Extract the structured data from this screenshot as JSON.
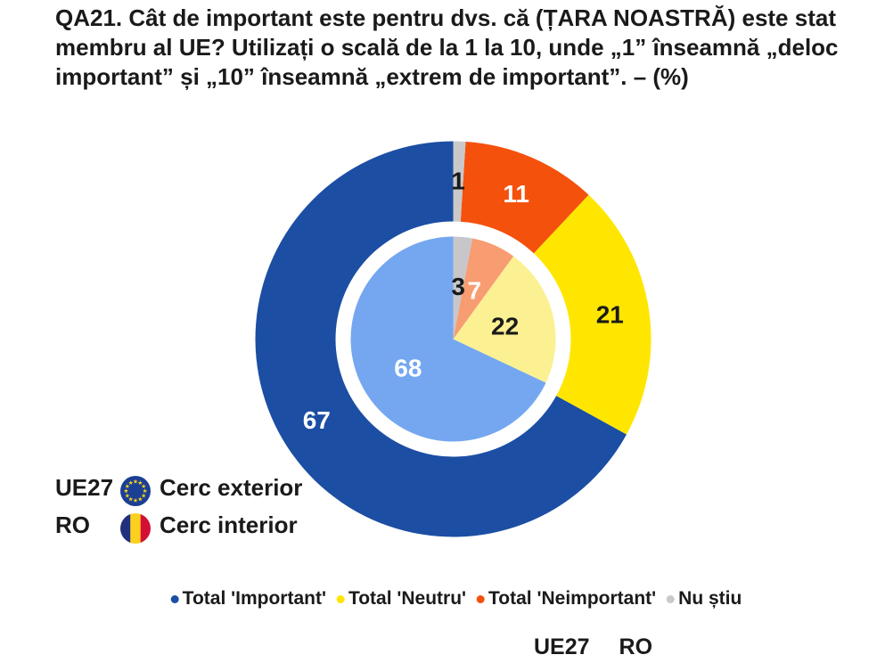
{
  "title": "QA21. Cât de important este pentru dvs. că (ȚARA NOASTRĂ) este stat membru al UE? Utilizați o scală de la 1 la 10, unde „1” înseamnă „deloc important” și „10” înseamnă „extrem de important”. – (%)",
  "ring_legend": [
    {
      "name": "UE27",
      "flag": "eu-flag",
      "desc": "Cerc exterior"
    },
    {
      "name": "RO",
      "flag": "ro-flag",
      "desc": "Cerc interior"
    }
  ],
  "category_legend": [
    {
      "label": "Total 'Important'",
      "color": "#1c4ea3"
    },
    {
      "label": "Total 'Neutru'",
      "color": "#ffe600"
    },
    {
      "label": "Total 'Neimportant'",
      "color": "#f4510c"
    },
    {
      "label": "Nu știu",
      "color": "#c9c9c9"
    }
  ],
  "footer_columns": {
    "col1": "UE27",
    "col2": "RO"
  },
  "flag_colors": {
    "eu_blue": "#1c3f94",
    "eu_star": "#f7d917",
    "ro_blue": "#21307c",
    "ro_yellow": "#fcd11d",
    "ro_red": "#d31034"
  },
  "chart_data": {
    "type": "pie",
    "subtype": "nested-donut",
    "title": "QA21. Cât de important este pentru dvs. că (ȚARA NOASTRĂ) este stat membru al UE? – (%)",
    "categories": [
      "Total 'Important'",
      "Total 'Neutru'",
      "Total 'Neimportant'",
      "Nu știu"
    ],
    "start_angle": "top",
    "direction": "counterclockwise",
    "rings": [
      {
        "name": "UE27",
        "position": "outer",
        "values": [
          67,
          21,
          11,
          1
        ],
        "colors": [
          "#1c4ea3",
          "#ffe600",
          "#f4510c",
          "#c9c9c9"
        ],
        "label_colors": [
          "#ffffff",
          "#1a1a1a",
          "#ffffff",
          "#1a1a1a"
        ]
      },
      {
        "name": "RO",
        "position": "inner",
        "values": [
          68,
          22,
          7,
          3
        ],
        "colors": [
          "#74a7f0",
          "#fcf192",
          "#f89c72",
          "#c7c7cb"
        ],
        "label_colors": [
          "#ffffff",
          "#1a1a1a",
          "#ffffff",
          "#1a1a1a"
        ]
      }
    ]
  }
}
